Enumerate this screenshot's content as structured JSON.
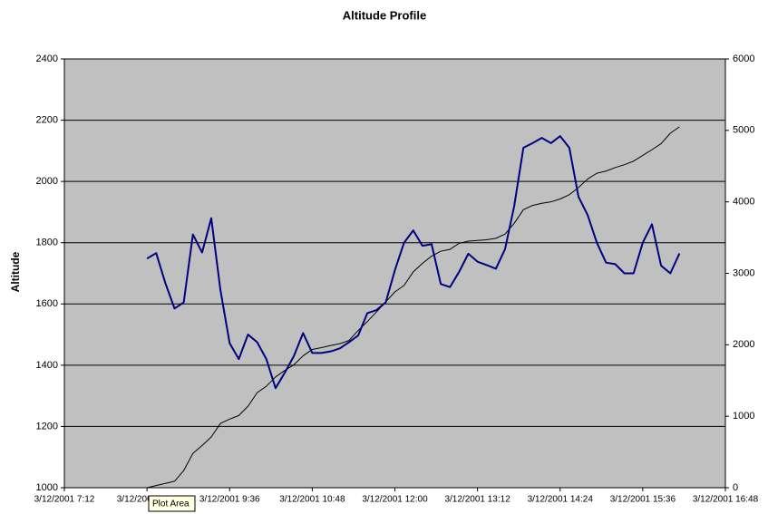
{
  "chart_data": {
    "type": "line",
    "title": "Altitude Profile",
    "y_label": "Altitude",
    "x": [
      "3/12/2001 8:24",
      "3/12/2001 8:32",
      "3/12/2001 8:40",
      "3/12/2001 8:48",
      "3/12/2001 8:56",
      "3/12/2001 9:04",
      "3/12/2001 9:12",
      "3/12/2001 9:20",
      "3/12/2001 9:28",
      "3/12/2001 9:36",
      "3/12/2001 9:44",
      "3/12/2001 9:52",
      "3/12/2001 10:00",
      "3/12/2001 10:08",
      "3/12/2001 10:16",
      "3/12/2001 10:24",
      "3/12/2001 10:32",
      "3/12/2001 10:40",
      "3/12/2001 10:48",
      "3/12/2001 10:56",
      "3/12/2001 11:04",
      "3/12/2001 11:12",
      "3/12/2001 11:20",
      "3/12/2001 11:28",
      "3/12/2001 11:36",
      "3/12/2001 11:44",
      "3/12/2001 11:52",
      "3/12/2001 12:00",
      "3/12/2001 12:08",
      "3/12/2001 12:16",
      "3/12/2001 12:24",
      "3/12/2001 12:32",
      "3/12/2001 12:40",
      "3/12/2001 12:48",
      "3/12/2001 12:56",
      "3/12/2001 13:04",
      "3/12/2001 13:12",
      "3/12/2001 13:20",
      "3/12/2001 13:28",
      "3/12/2001 13:36",
      "3/12/2001 13:44",
      "3/12/2001 13:52",
      "3/12/2001 14:00",
      "3/12/2001 14:08",
      "3/12/2001 14:16",
      "3/12/2001 14:24",
      "3/12/2001 14:32",
      "3/12/2001 14:40",
      "3/12/2001 14:48",
      "3/12/2001 14:56",
      "3/12/2001 15:04",
      "3/12/2001 15:12",
      "3/12/2001 15:20",
      "3/12/2001 15:28",
      "3/12/2001 15:36",
      "3/12/2001 15:44",
      "3/12/2001 15:52",
      "3/12/2001 16:00",
      "3/12/2001 16:08"
    ],
    "series": [
      {
        "color": "#000080",
        "values": [
          1748,
          1766,
          1668,
          1585,
          1605,
          1827,
          1768,
          1880,
          1645,
          1472,
          1420,
          1500,
          1475,
          1420,
          1325,
          1375,
          1430,
          1505,
          1440,
          1440,
          1445,
          1455,
          1475,
          1497,
          1570,
          1580,
          1605,
          1710,
          1800,
          1840,
          1790,
          1795,
          1665,
          1655,
          1705,
          1764,
          1738,
          1727,
          1715,
          1779,
          1920,
          2110,
          2125,
          2142,
          2125,
          2148,
          2110,
          1950,
          1890,
          1800,
          1735,
          1730,
          1700,
          1700,
          1800,
          1860,
          1725,
          1700,
          1765
        ]
      },
      {
        "color": "#000000",
        "axis": "y2",
        "values": [
          0,
          30,
          60,
          90,
          240,
          480,
          590,
          710,
          900,
          960,
          1010,
          1140,
          1330,
          1420,
          1550,
          1640,
          1720,
          1845,
          1935,
          1960,
          1990,
          2015,
          2060,
          2200,
          2325,
          2460,
          2600,
          2740,
          2830,
          3020,
          3140,
          3240,
          3310,
          3335,
          3420,
          3450,
          3460,
          3470,
          3490,
          3550,
          3700,
          3890,
          3950,
          3980,
          4000,
          4040,
          4100,
          4200,
          4320,
          4400,
          4430,
          4480,
          4520,
          4570,
          4650,
          4730,
          4815,
          4960,
          5050
        ]
      }
    ],
    "xlim": [
      "3/12/2001 7:12",
      "3/12/2001 16:48"
    ],
    "xticks": [
      "3/12/2001 7:12",
      "3/12/2001 8:24",
      "3/12/2001 9:36",
      "3/12/2001 10:48",
      "3/12/2001 12:00",
      "3/12/2001 13:12",
      "3/12/2001 14:24",
      "3/12/2001 15:36",
      "3/12/2001 16:48"
    ],
    "ylim": [
      1000,
      2400
    ],
    "yticks": [
      1000,
      1200,
      1400,
      1600,
      1800,
      2000,
      2200,
      2400
    ],
    "y2lim": [
      0,
      6000
    ],
    "y2ticks": [
      0,
      1000,
      2000,
      3000,
      4000,
      5000,
      6000
    ],
    "grid": true,
    "tooltip": "Plot Area"
  }
}
